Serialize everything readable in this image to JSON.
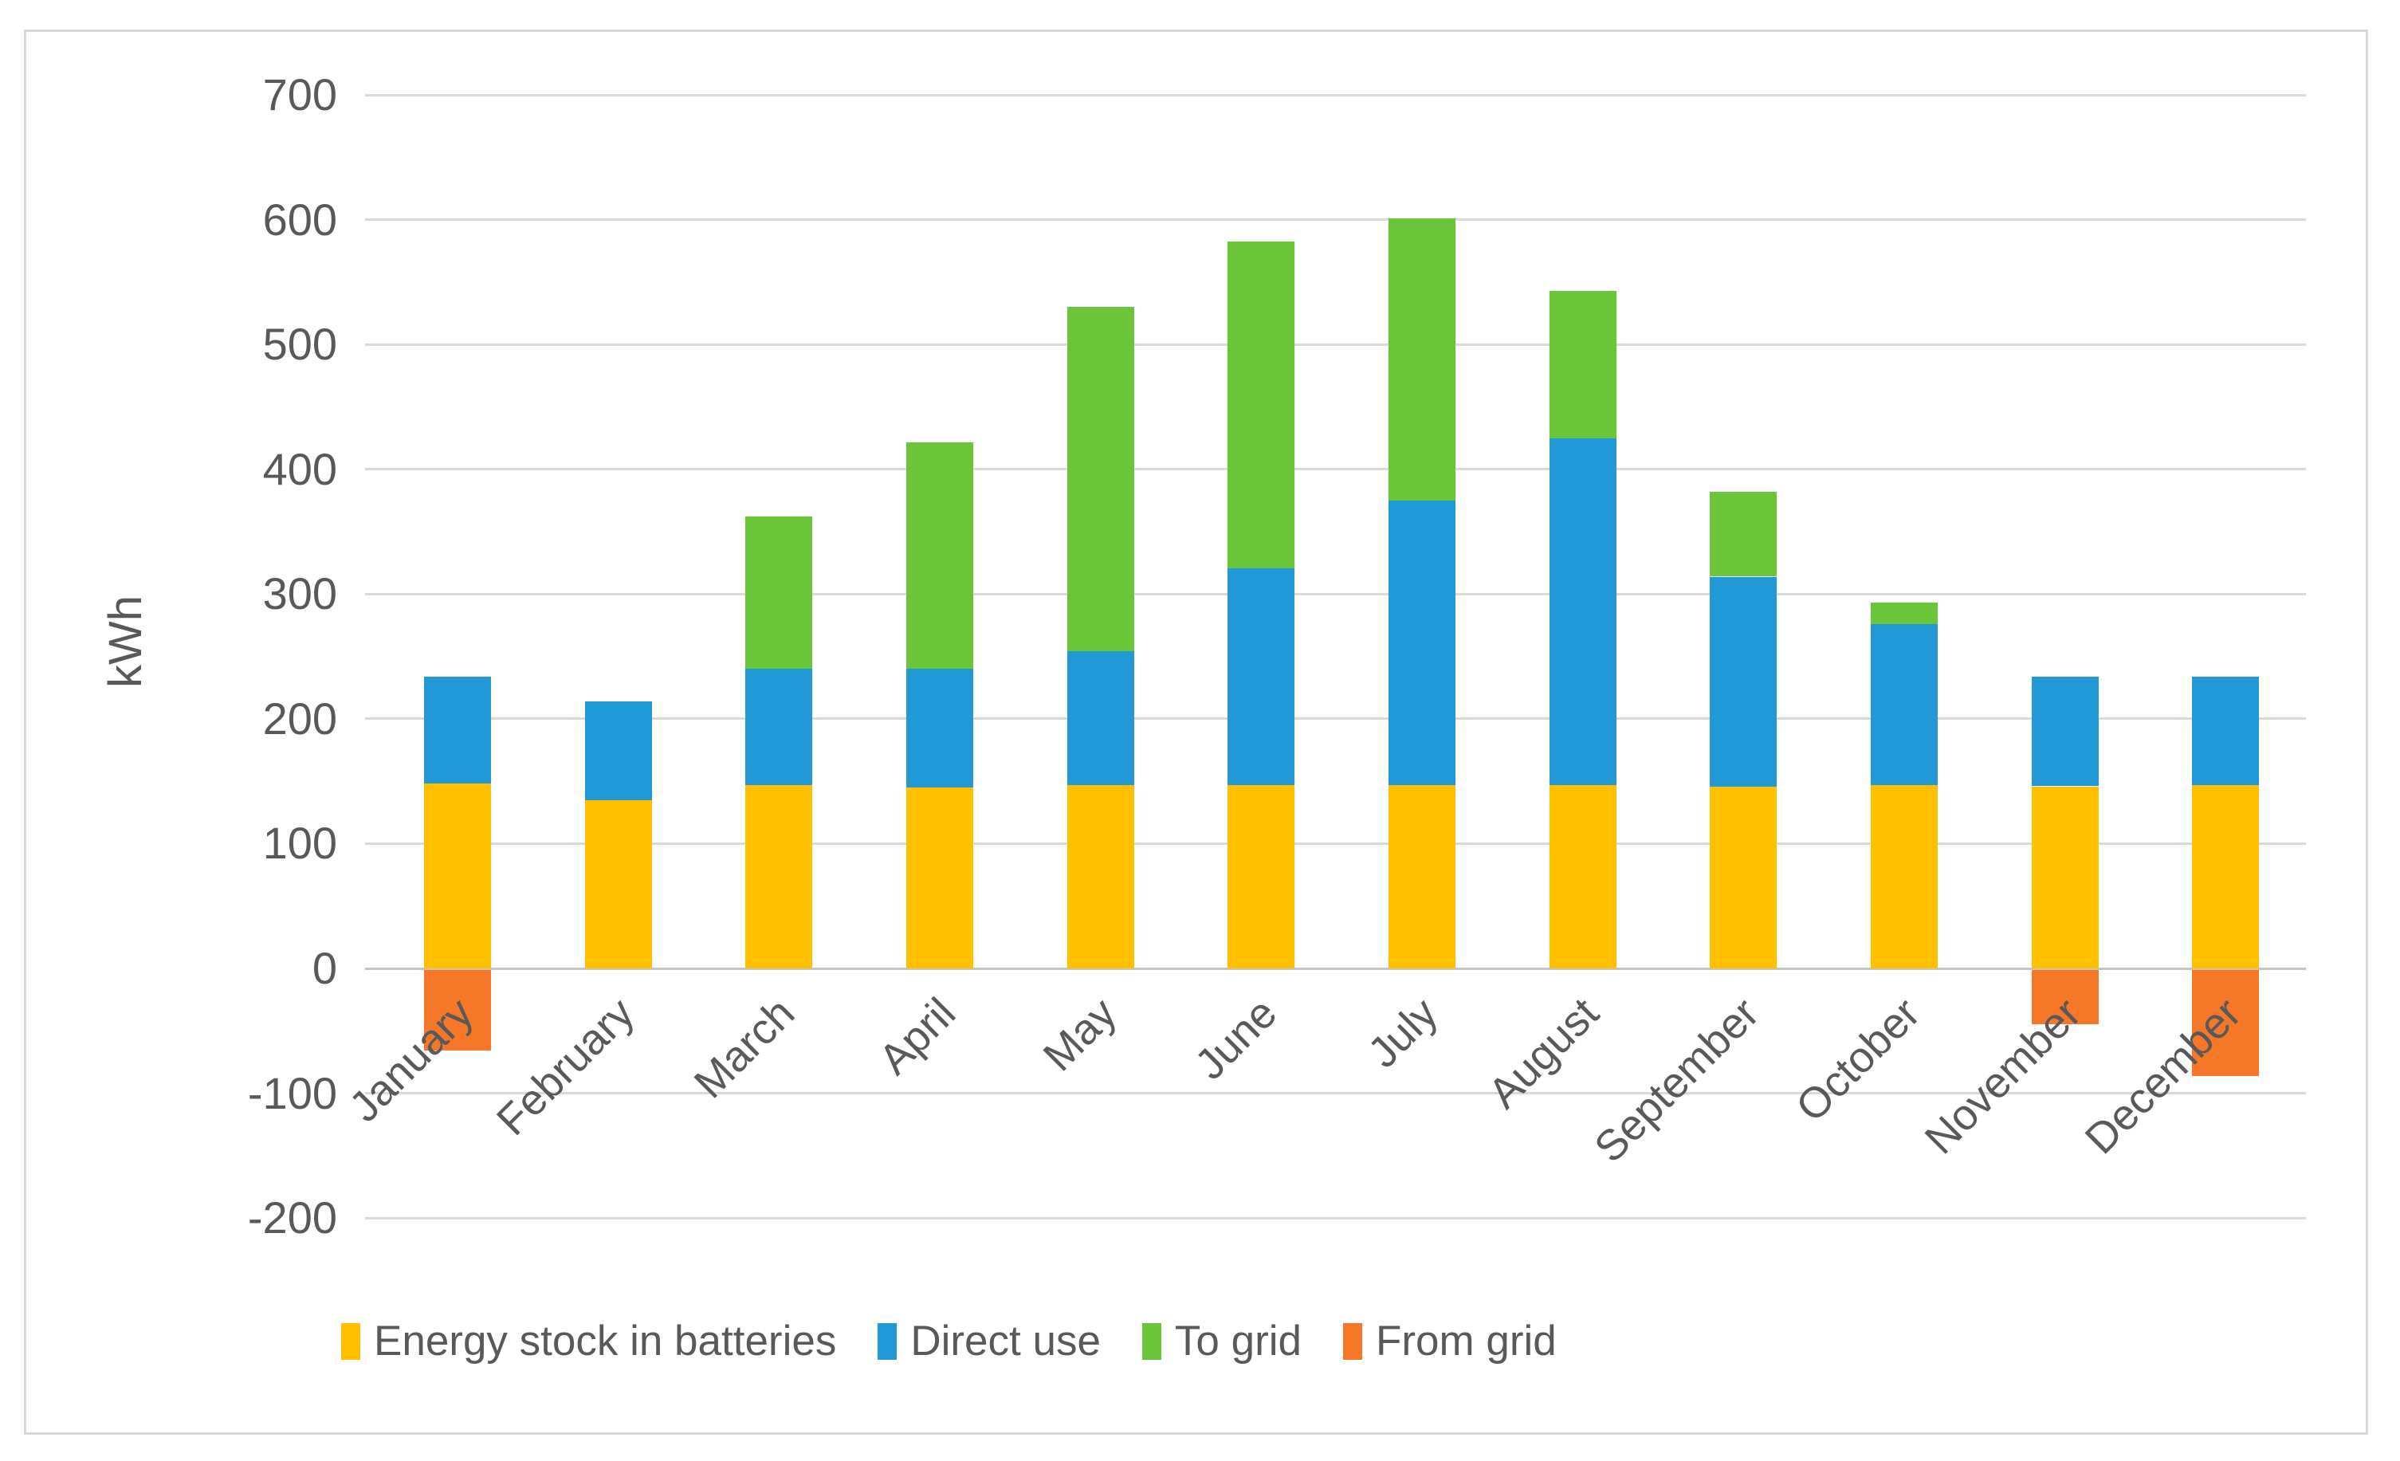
{
  "chart_data": {
    "type": "bar",
    "stacked": true,
    "title": "",
    "xlabel": "",
    "ylabel": "kWh",
    "categories": [
      "January",
      "February",
      "March",
      "April",
      "May",
      "June",
      "July",
      "August",
      "September",
      "October",
      "November",
      "December"
    ],
    "series": [
      {
        "name": "Energy stock in batteries",
        "color": "#FFC000",
        "values": [
          148,
          135,
          147,
          145,
          147,
          147,
          147,
          147,
          146,
          147,
          146,
          147
        ]
      },
      {
        "name": "Direct use",
        "color": "#2199D6",
        "values": [
          86,
          79,
          93,
          95,
          107,
          174,
          228,
          278,
          168,
          129,
          88,
          87
        ]
      },
      {
        "name": "To grid",
        "color": "#6AC539",
        "values": [
          0,
          0,
          122,
          182,
          276,
          262,
          226,
          118,
          68,
          17,
          0,
          0
        ]
      },
      {
        "name": "From grid",
        "color": "#F67728",
        "values": [
          -65,
          0,
          0,
          0,
          0,
          0,
          0,
          0,
          0,
          0,
          -44,
          -85
        ]
      }
    ],
    "y_axis": {
      "min": -200,
      "max": 700,
      "step": 100,
      "ticks": [
        700,
        600,
        500,
        400,
        300,
        200,
        100,
        0,
        -100,
        -200
      ]
    },
    "grid": true,
    "legend_position": "bottom",
    "category_label_rotation_deg": 45
  },
  "colors": {
    "gridline": "#DADADA",
    "zero_line": "#C4C4C4",
    "axis_text": "#595959",
    "frame_border": "#D8D8D8",
    "background": "#FFFFFF"
  }
}
